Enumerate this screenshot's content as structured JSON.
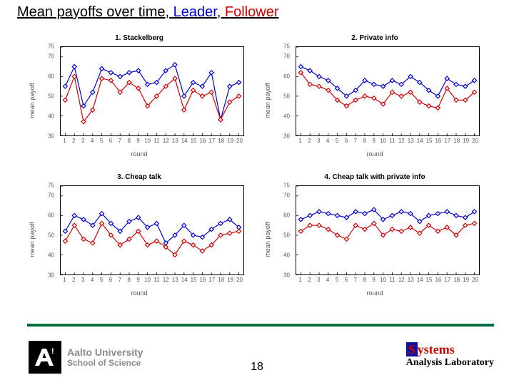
{
  "title": {
    "prefix": "Mean payoffs over time, ",
    "leader_label": "Leader",
    "sep": ", ",
    "follower_label": "Follower"
  },
  "colors": {
    "leader": "#0000d0",
    "follower": "#d00000",
    "box": "#000000",
    "tick_text": "#666666",
    "rule": "#007040"
  },
  "axis": {
    "xlim": [
      0.5,
      20.5
    ],
    "ylim": [
      30,
      75
    ],
    "xticks": [
      1,
      2,
      3,
      4,
      5,
      6,
      7,
      8,
      9,
      10,
      11,
      12,
      13,
      14,
      15,
      16,
      17,
      18,
      19,
      20
    ],
    "yticks": [
      30,
      40,
      50,
      60,
      70
    ],
    "ytick_top_label": "75",
    "xlabel": "round",
    "ylabel": "mean payoff",
    "tick_fontsize": 8,
    "label_fontsize": 9,
    "title_fontsize": 10
  },
  "style": {
    "line_width": 1.2,
    "marker": "diamond",
    "marker_size": 3
  },
  "charts": [
    {
      "id": "stackelberg",
      "title": "1. Stackelberg",
      "leader": [
        55,
        65,
        45,
        52,
        64,
        62,
        60,
        62,
        63,
        56,
        57,
        63,
        66,
        50,
        57,
        55,
        62,
        38,
        55,
        57
      ],
      "follower": [
        48,
        60,
        37,
        43,
        59,
        58,
        52,
        57,
        54,
        45,
        50,
        55,
        59,
        43,
        53,
        50,
        52,
        38,
        47,
        50
      ]
    },
    {
      "id": "privateinfo",
      "title": "2. Private info",
      "leader": [
        65,
        63,
        60,
        58,
        54,
        50,
        53,
        58,
        56,
        55,
        58,
        56,
        60,
        57,
        53,
        50,
        59,
        56,
        55,
        58
      ],
      "follower": [
        62,
        56,
        55,
        53,
        48,
        45,
        48,
        50,
        49,
        46,
        52,
        50,
        52,
        47,
        45,
        44,
        54,
        48,
        48,
        52
      ]
    },
    {
      "id": "cheaptalk",
      "title": "3. Cheap talk",
      "leader": [
        52,
        60,
        58,
        55,
        61,
        56,
        52,
        57,
        59,
        54,
        56,
        46,
        50,
        55,
        50,
        49,
        53,
        56,
        58,
        54
      ],
      "follower": [
        47,
        55,
        48,
        46,
        56,
        50,
        45,
        48,
        52,
        45,
        47,
        44,
        40,
        47,
        45,
        42,
        45,
        50,
        51,
        52
      ]
    },
    {
      "id": "cheaptalkpriv",
      "title": "4. Cheap talk with private info",
      "leader": [
        58,
        60,
        62,
        61,
        60,
        59,
        62,
        61,
        63,
        58,
        60,
        62,
        61,
        57,
        60,
        61,
        62,
        60,
        59,
        62
      ],
      "follower": [
        52,
        55,
        55,
        53,
        50,
        48,
        55,
        53,
        56,
        50,
        53,
        52,
        54,
        51,
        55,
        52,
        54,
        50,
        55,
        56
      ]
    }
  ],
  "footer": {
    "page_number": "18",
    "aalto_university": "Aalto University",
    "aalto_school": "School of Science",
    "systems_s": "S",
    "systems_rest": "ystems",
    "systems_line2": "Analysis Laboratory"
  }
}
